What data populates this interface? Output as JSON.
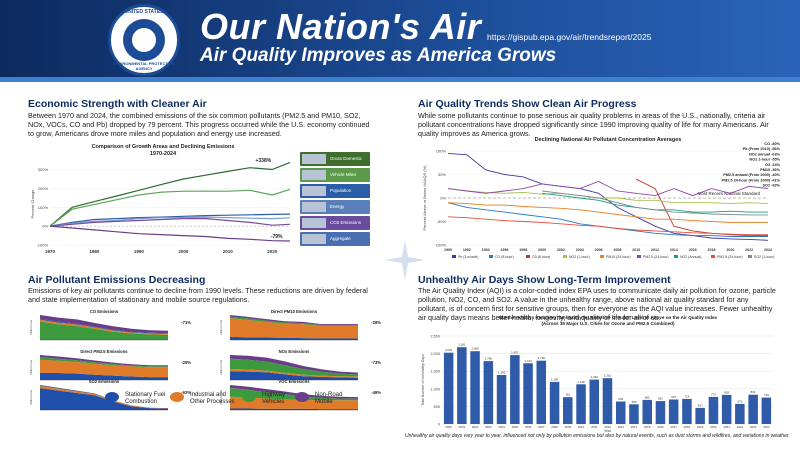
{
  "header": {
    "title": "Our Nation's Air",
    "subtitle": "Air Quality Improves as America Grows",
    "url": "https://gispub.epa.gov/air/trendsreport/2025",
    "seal_top": "UNITED STATES",
    "seal_bottom": "ENVIRONMENTAL PROTECTION AGENCY",
    "colors": {
      "bg": "#1c4c96",
      "text": "#ffffff"
    }
  },
  "sections": {
    "economic": {
      "title": "Economic Strength with Cleaner Air",
      "body": "Between 1970 and 2024, the combined emissions of the six common pollutants (PM2.5 and PM10, SO2, NOx, VOCs, CO and Pb) dropped by 79 percent. This progress occurred while the U.S. economy continued to grow, Americans drove more miles and population and energy use increased."
    },
    "trends": {
      "title": "Air Quality Trends Show Clean Air Progress",
      "body": "While some pollutants continue to pose serious air quality problems in areas of the U.S., nationally, criteria air pollutant concentrations have dropped significantly since 1990 improving quality of life for many Americans. Air quality improves as America grows."
    },
    "emissions": {
      "title": "Air Pollutant Emissions Decreasing",
      "body": "Emissions of key air pollutants continue to decline from 1990 levels. These reductions are driven by federal and state implementation of stationary and mobile source regulations."
    },
    "unhealthy": {
      "title": "Unhealthy Air Days Show Long-Term Improvement",
      "body": "The Air Quality Index (AQI) is a color-coded index EPA uses to communicate daily air pollution for ozone, particle pollution, NO2, CO, and SO2. A value in the unhealthy range, above national air quality standard for any pollutant, is of concern first for sensitive groups, then for everyone as the AQI value increases. Fewer unhealthy air quality days means better health, longevity, and quality of life for all of us."
    }
  },
  "chart_data": [
    {
      "type": "line",
      "title": "Comparison of Growth Areas and Declining Emissions",
      "subtitle": "1970-2024",
      "ylabel": "Percent Change",
      "x": [
        1970,
        1975,
        1980,
        1985,
        1990,
        1995,
        2000,
        2005,
        2010,
        2015,
        2020,
        2024
      ],
      "ylim": [
        -100,
        300
      ],
      "yticks": [
        300,
        200,
        100,
        0,
        -100
      ],
      "yticklabels": [
        "300%",
        "200%",
        "100%",
        "0%",
        "-100%"
      ],
      "xticks": [
        1970,
        1980,
        1990,
        2000,
        2010,
        2020
      ],
      "annotations": [
        {
          "text": "+338%",
          "x": 2018,
          "y": 325
        },
        {
          "text": "-79%",
          "x": 2021,
          "y": -80
        }
      ],
      "series": [
        {
          "name": "Gross Domestic Product",
          "color": "#2e6b2e",
          "values": [
            0,
            100,
            130,
            160,
            190,
            220,
            250,
            270,
            290,
            310,
            300,
            338
          ]
        },
        {
          "name": "Vehicle Miles Traveled",
          "color": "#5aa55a",
          "values": [
            0,
            90,
            115,
            140,
            165,
            180,
            185,
            185,
            185,
            190,
            165,
            195
          ]
        },
        {
          "name": "Population",
          "color": "#2c5ea8",
          "values": [
            0,
            20,
            35,
            40,
            45,
            48,
            52,
            56,
            58,
            60,
            62,
            64
          ]
        },
        {
          "name": "Energy Consumption",
          "color": "#7a9fd0",
          "values": [
            0,
            15,
            25,
            30,
            40,
            45,
            45,
            48,
            45,
            42,
            40,
            44
          ]
        },
        {
          "name": "CO2 Emissions",
          "color": "#7a4c9c",
          "values": [
            0,
            10,
            20,
            25,
            30,
            35,
            40,
            40,
            30,
            20,
            5,
            10
          ]
        },
        {
          "name": "Aggregate Emissions (Six Common Pollutants)",
          "color": "#6a3d8a",
          "values": [
            0,
            -10,
            -20,
            -30,
            -40,
            -45,
            -50,
            -55,
            -65,
            -70,
            -77,
            -79
          ]
        }
      ]
    },
    {
      "type": "line",
      "title": "Declining National Air Pollutant Concentration Averages",
      "ylabel": "Percent Above or Below NAAQS (%)",
      "x": [
        1990,
        1992,
        1994,
        1996,
        1998,
        2000,
        2002,
        2004,
        2006,
        2008,
        2010,
        2012,
        2014,
        2016,
        2018,
        2020,
        2022,
        2024
      ],
      "ylim": [
        -100,
        100
      ],
      "yticks": [
        100,
        50,
        0,
        -50,
        -100
      ],
      "yticklabels": [
        "100%",
        "50%",
        "0%",
        "-50%",
        "-100%"
      ],
      "standard_label": "Most Recent National Standard",
      "legend_right": [
        "CO -80%",
        "Pb (From 2010) -86%",
        "NO2 annual -63%",
        "NO2 1-hour -55%",
        "O3 -24%",
        "PM10 -36%",
        "PM2.5 annual (From 2000) -40%",
        "PM2.5 24-hour (From 2000) -41%",
        "SO2 -93%"
      ],
      "legend_bottom": [
        "Pb (3-month)",
        "CO (8-hour)",
        "O3 (8-hour)",
        "NO2 (1-hour)",
        "PM10 (24-hour)",
        "PM2.5 (24-hour)",
        "NO2 (Annual)",
        "PM2.5 (24-hour)",
        "SO2 (1-hour)"
      ],
      "series": [
        {
          "name": "SO2 (1-hour)",
          "color": "#3a3aa0",
          "values": [
            95,
            92,
            60,
            50,
            45,
            30,
            25,
            20,
            10,
            -20,
            -40,
            -60,
            -75,
            -80,
            -85,
            -87,
            -88,
            -90
          ]
        },
        {
          "name": "CO (8-hour)",
          "color": "#2b78c4",
          "values": [
            -10,
            -20,
            -25,
            -30,
            -35,
            -40,
            -45,
            -55,
            -60,
            -65,
            -70,
            -75,
            -78,
            -80,
            -80,
            -82,
            -82,
            -82
          ]
        },
        {
          "name": "Pb (3-month)",
          "color": "#c0392b",
          "values": [
            null,
            null,
            null,
            null,
            null,
            null,
            null,
            null,
            null,
            null,
            40,
            20,
            -60,
            -70,
            -75,
            -78,
            -80,
            -80
          ]
        },
        {
          "name": "O3 (8-hour)",
          "color": "#a6c24a",
          "values": [
            20,
            15,
            12,
            10,
            12,
            8,
            10,
            5,
            0,
            0,
            -5,
            -5,
            -10,
            -10,
            -10,
            -12,
            -10,
            -12
          ]
        },
        {
          "name": "NO2 (1-hour)",
          "color": "#e67e22",
          "values": [
            -10,
            -12,
            -15,
            -15,
            -18,
            -20,
            -22,
            -25,
            -30,
            -35,
            -40,
            -45,
            -45,
            -48,
            -50,
            -52,
            -52,
            -52
          ]
        },
        {
          "name": "PM10 (24-hour)",
          "color": "#8e44ad",
          "values": [
            20,
            15,
            10,
            15,
            20,
            30,
            25,
            20,
            35,
            15,
            10,
            5,
            20,
            5,
            20,
            10,
            25,
            20
          ]
        },
        {
          "name": "PM2.5 (24-hour)",
          "color": "#16a085",
          "values": [
            null,
            null,
            null,
            null,
            null,
            10,
            5,
            0,
            -5,
            -15,
            -20,
            -25,
            -25,
            -30,
            -30,
            -28,
            -30,
            -30
          ]
        },
        {
          "name": "NO2 (Annual)",
          "color": "#e74c3c",
          "values": [
            -40,
            -42,
            -45,
            -48,
            -50,
            -52,
            -55,
            -58,
            -60,
            -65,
            -68,
            -70,
            -72,
            -74,
            -75,
            -77,
            -78,
            -78
          ]
        },
        {
          "name": "PM2.5 (annual)",
          "color": "#7f8c8d",
          "values": [
            null,
            null,
            null,
            null,
            null,
            15,
            10,
            5,
            0,
            -10,
            -20,
            -25,
            -30,
            -32,
            -34,
            -35,
            -36,
            -36
          ]
        }
      ]
    },
    {
      "type": "area",
      "title": "CO Emissions",
      "change": "-71%",
      "ylabel": "million tons",
      "x": [
        1990,
        1995,
        2000,
        2005,
        2010,
        2015,
        2020,
        2024
      ],
      "series": [
        {
          "name": "Highway Vehicles",
          "color": "#3c9a3c",
          "values": [
            100,
            85,
            75,
            60,
            45,
            35,
            30,
            28
          ]
        },
        {
          "name": "Industrial and Other Processes",
          "color": "#e07b2a",
          "values": [
            10,
            9,
            9,
            8,
            7,
            6,
            6,
            6
          ]
        },
        {
          "name": "Stationary Fuel Combustion",
          "color": "#1f4fa8",
          "values": [
            5,
            5,
            5,
            4,
            4,
            4,
            3,
            3
          ]
        },
        {
          "name": "Non-Road Mobile",
          "color": "#6a3d8a",
          "values": [
            20,
            22,
            22,
            20,
            18,
            16,
            14,
            13
          ]
        }
      ]
    },
    {
      "type": "area",
      "title": "Direct PM10 Emissions",
      "change": "-28%",
      "ylabel": "million tons",
      "x": [
        1990,
        1995,
        2000,
        2005,
        2010,
        2015,
        2020,
        2024
      ],
      "series": [
        {
          "name": "Stationary Fuel Combustion",
          "color": "#1f4fa8",
          "values": [
            10,
            9,
            8,
            7,
            6,
            5,
            5,
            5
          ]
        },
        {
          "name": "Industrial and Other Processes",
          "color": "#e07b2a",
          "values": [
            60,
            55,
            50,
            45,
            45,
            40,
            40,
            40
          ]
        },
        {
          "name": "Highway Vehicles",
          "color": "#3c9a3c",
          "values": [
            5,
            5,
            4,
            4,
            3,
            3,
            3,
            3
          ]
        },
        {
          "name": "Non-Road Mobile",
          "color": "#6a3d8a",
          "values": [
            5,
            5,
            5,
            4,
            4,
            3,
            3,
            3
          ]
        }
      ]
    },
    {
      "type": "area",
      "title": "Direct PM2.5 Emissions",
      "change": "-29%",
      "ylabel": "million tons",
      "x": [
        1990,
        1995,
        2000,
        2005,
        2010,
        2015,
        2020,
        2024
      ],
      "series": [
        {
          "name": "Stationary Fuel Combustion",
          "color": "#1f4fa8",
          "values": [
            25,
            24,
            22,
            18,
            15,
            12,
            10,
            10
          ]
        },
        {
          "name": "Industrial and Other Processes",
          "color": "#e07b2a",
          "values": [
            45,
            42,
            40,
            38,
            36,
            35,
            34,
            34
          ]
        },
        {
          "name": "Highway Vehicles",
          "color": "#3c9a3c",
          "values": [
            8,
            7,
            6,
            5,
            4,
            3,
            3,
            3
          ]
        },
        {
          "name": "Non-Road Mobile",
          "color": "#6a3d8a",
          "values": [
            8,
            8,
            7,
            6,
            5,
            4,
            4,
            4
          ]
        }
      ]
    },
    {
      "type": "area",
      "title": "NOx Emissions",
      "change": "-73%",
      "ylabel": "million tons",
      "x": [
        1990,
        1995,
        2000,
        2005,
        2010,
        2015,
        2020,
        2024
      ],
      "series": [
        {
          "name": "Stationary Fuel Combustion",
          "color": "#1f4fa8",
          "values": [
            35,
            33,
            30,
            22,
            15,
            12,
            10,
            9
          ]
        },
        {
          "name": "Industrial and Other Processes",
          "color": "#e07b2a",
          "values": [
            8,
            8,
            7,
            6,
            6,
            5,
            5,
            5
          ]
        },
        {
          "name": "Highway Vehicles",
          "color": "#3c9a3c",
          "values": [
            40,
            38,
            35,
            30,
            22,
            15,
            10,
            8
          ]
        },
        {
          "name": "Non-Road Mobile",
          "color": "#6a3d8a",
          "values": [
            15,
            16,
            16,
            15,
            12,
            10,
            8,
            7
          ]
        }
      ]
    },
    {
      "type": "area",
      "title": "SO2 Emissions",
      "change": "-93%",
      "ylabel": "million tons",
      "x": [
        1990,
        1995,
        2000,
        2005,
        2010,
        2015,
        2020,
        2024
      ],
      "series": [
        {
          "name": "Stationary Fuel Combustion",
          "color": "#1f4fa8",
          "values": [
            90,
            80,
            70,
            60,
            35,
            15,
            8,
            6
          ]
        },
        {
          "name": "Industrial and Other Processes",
          "color": "#e07b2a",
          "values": [
            8,
            7,
            6,
            5,
            4,
            3,
            2,
            2
          ]
        },
        {
          "name": "Highway Vehicles",
          "color": "#3c9a3c",
          "values": [
            2,
            2,
            1,
            1,
            0,
            0,
            0,
            0
          ]
        },
        {
          "name": "Non-Road Mobile",
          "color": "#6a3d8a",
          "values": [
            3,
            3,
            3,
            2,
            1,
            1,
            0,
            0
          ]
        }
      ]
    },
    {
      "type": "area",
      "title": "VOC Emissions",
      "change": "-49%",
      "ylabel": "million tons",
      "x": [
        1990,
        1995,
        2000,
        2005,
        2010,
        2015,
        2020,
        2024
      ],
      "series": [
        {
          "name": "Stationary Fuel Combustion",
          "color": "#1f4fa8",
          "values": [
            5,
            5,
            4,
            4,
            4,
            3,
            3,
            3
          ]
        },
        {
          "name": "Industrial and Other Processes",
          "color": "#e07b2a",
          "values": [
            40,
            38,
            35,
            32,
            30,
            30,
            30,
            30
          ]
        },
        {
          "name": "Highway Vehicles",
          "color": "#3c9a3c",
          "values": [
            30,
            26,
            22,
            18,
            12,
            8,
            6,
            5
          ]
        },
        {
          "name": "Non-Road Mobile",
          "color": "#6a3d8a",
          "values": [
            10,
            10,
            10,
            9,
            8,
            7,
            6,
            6
          ]
        }
      ]
    },
    {
      "type": "bar",
      "title": "Number of Days Reaching \"Unhealthy for Sensitive Groups\" Level or Above on the Air Quality Index",
      "subtitle": "(Across 35 Major U.S. Cities for Ozone and PM2.5 Combined)",
      "ylabel": "Total Number of Unhealthy Days",
      "xlabel": "Year",
      "ylim": [
        0,
        2500
      ],
      "yticks": [
        0,
        500,
        1000,
        1500,
        2000,
        2500
      ],
      "yticklabels": [
        "0",
        "500",
        "1,000",
        "1,500",
        "2,000",
        "2,500"
      ],
      "color": "#2f5ba8",
      "categories": [
        "2000",
        "2001",
        "2002",
        "2003",
        "2004",
        "2005",
        "2006",
        "2007",
        "2008",
        "2009",
        "2010",
        "2011",
        "2012",
        "2013",
        "2014",
        "2015",
        "2016",
        "2017",
        "2018",
        "2019",
        "2020",
        "2021",
        "2022",
        "2023",
        "2024"
      ],
      "values": [
        2026,
        2181,
        2068,
        1786,
        1392,
        1957,
        1724,
        1799,
        1195,
        761,
        1128,
        1262,
        1301,
        639,
        559,
        685,
        651,
        697,
        714,
        457,
        770,
        828,
        570,
        831,
        749
      ]
    }
  ],
  "emissions_legend": [
    {
      "label": "Stationary Fuel\nCombustion",
      "color": "#1f4fa8"
    },
    {
      "label": "Industrial and\nOther Processes",
      "color": "#e07b2a"
    },
    {
      "label": "Highway\nVehicles",
      "color": "#3c9a3c"
    },
    {
      "label": "Non-Road\nMobile",
      "color": "#6a3d8a"
    }
  ],
  "footnote": "Unhealthy air quality days vary year to year, influenced not only by pollution emissions but also by natural events, such as dust storms and wildfires, and variations in weather."
}
